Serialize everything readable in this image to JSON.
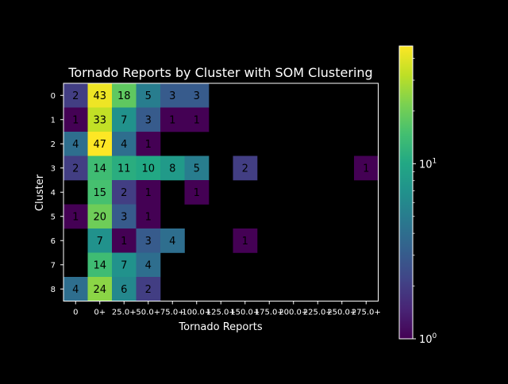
{
  "chart_data": {
    "type": "heatmap",
    "title": "Tornado Reports by Cluster with SOM Clustering",
    "xlabel": "Tornado Reports",
    "ylabel": "Cluster",
    "x_categories": [
      "0",
      "0+",
      "25.0+",
      "50.0+",
      "75.0+",
      "100.0+",
      "125.0+",
      "150.0+",
      "175.0+",
      "200.0+",
      "225.0+",
      "250.0+",
      "275.0+"
    ],
    "y_categories": [
      "0",
      "1",
      "2",
      "3",
      "4",
      "5",
      "6",
      "7",
      "8"
    ],
    "values": [
      [
        2,
        43,
        18,
        5,
        3,
        3,
        null,
        null,
        null,
        null,
        null,
        null,
        null
      ],
      [
        1,
        33,
        7,
        3,
        1,
        1,
        null,
        null,
        null,
        null,
        null,
        null,
        null
      ],
      [
        4,
        47,
        4,
        1,
        null,
        null,
        null,
        null,
        null,
        null,
        null,
        null,
        null
      ],
      [
        2,
        14,
        11,
        10,
        8,
        5,
        null,
        2,
        null,
        null,
        null,
        null,
        1
      ],
      [
        null,
        15,
        2,
        1,
        null,
        1,
        null,
        null,
        null,
        null,
        null,
        null,
        null
      ],
      [
        1,
        20,
        3,
        1,
        null,
        null,
        null,
        null,
        null,
        null,
        null,
        null,
        null
      ],
      [
        null,
        7,
        1,
        3,
        4,
        null,
        null,
        1,
        null,
        null,
        null,
        null,
        null
      ],
      [
        null,
        14,
        7,
        4,
        null,
        null,
        null,
        null,
        null,
        null,
        null,
        null,
        null
      ],
      [
        4,
        24,
        6,
        2,
        null,
        null,
        null,
        null,
        null,
        null,
        null,
        null,
        null
      ]
    ],
    "color_scale": "log",
    "colormap": "viridis",
    "color_range": [
      1,
      47
    ],
    "colorbar_ticks": [
      {
        "value": 1,
        "label": "10",
        "exp": "0"
      },
      {
        "value": 10,
        "label": "10",
        "exp": "1"
      }
    ],
    "colorbar_minor_ticks": [
      2,
      3,
      4,
      5,
      6,
      7,
      8,
      9,
      20,
      30,
      40
    ],
    "grid": false,
    "background": "#000000"
  }
}
